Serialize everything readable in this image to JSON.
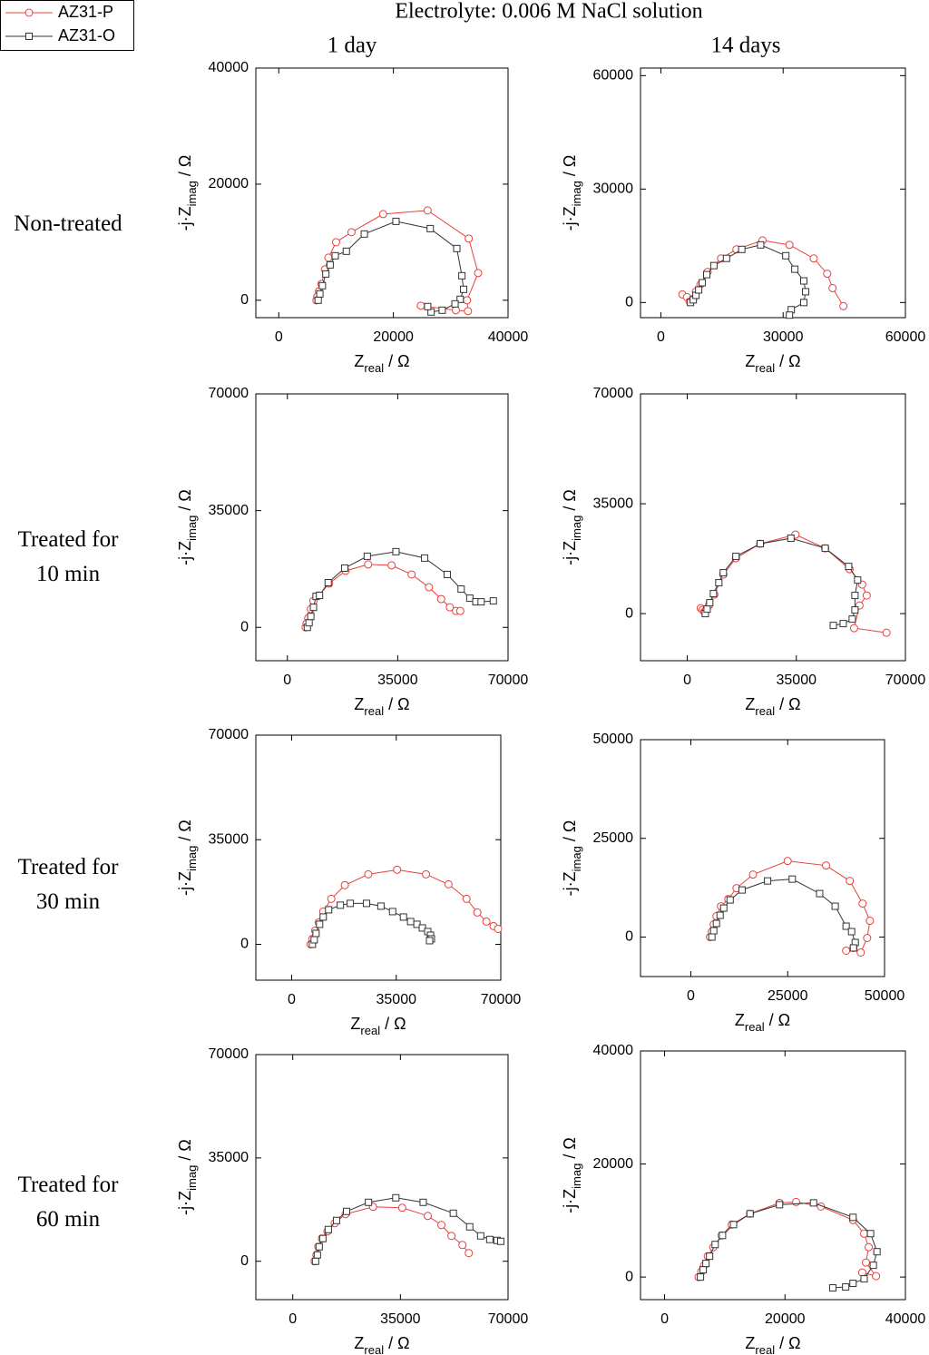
{
  "title": "Electrolyte: 0.006 M NaCl solution",
  "column_titles": [
    "1 day",
    "14 days"
  ],
  "row_labels": [
    "Non-treated",
    "Treated for 10 min",
    "Treated for 30 min",
    "Treated for 60 min"
  ],
  "chart_data": [
    {
      "type": "line",
      "xlabel": [
        "Z",
        "real",
        "/ Ω"
      ],
      "ylabel": [
        "-j·Z",
        "imag",
        "/ Ω"
      ],
      "xlim": [
        -4000,
        40000
      ],
      "xticks": [
        0,
        20000,
        40000
      ],
      "ylim": [
        -3000,
        40000
      ],
      "yticks": [
        0,
        20000,
        40000
      ],
      "series": [
        {
          "name": "AZ31-P",
          "color": "#e8403a",
          "marker": "circle",
          "x": [
            6570,
            6720,
            7020,
            7460,
            8060,
            8660,
            10000,
            12690,
            18210,
            25970,
            33140,
            34780,
            32840,
            33000,
            30900,
            24780
          ],
          "values": [
            0,
            625,
            1560,
            2810,
            5310,
            7340,
            10000,
            11720,
            14840,
            15470,
            10630,
            4690,
            0,
            -1880,
            -1720,
            -940
          ]
        },
        {
          "name": "AZ31-O",
          "color": "#333333",
          "marker": "square",
          "x": [
            6870,
            7170,
            7610,
            8210,
            8960,
            9850,
            11790,
            14930,
            20450,
            26430,
            31060,
            31950,
            32250,
            31650,
            30750,
            28510,
            26570,
            25980
          ],
          "values": [
            0,
            1090,
            2500,
            4530,
            6090,
            7660,
            8440,
            11410,
            13590,
            12340,
            8910,
            4220,
            1880,
            160,
            -630,
            -1720,
            -2030,
            -1090
          ]
        }
      ]
    },
    {
      "type": "line",
      "xlabel": [
        "Z",
        "real",
        "/ Ω"
      ],
      "ylabel": [
        "-j·Z",
        "imag",
        "/ Ω"
      ],
      "xlim": [
        -5000,
        60000
      ],
      "xticks": [
        0,
        30000,
        60000
      ],
      "ylim": [
        -4000,
        62000
      ],
      "yticks": [
        0,
        30000,
        60000
      ],
      "series": [
        {
          "name": "AZ31-P",
          "color": "#e8403a",
          "marker": "circle",
          "x": [
            5290,
            6400,
            7060,
            7940,
            8600,
            9710,
            11470,
            14780,
            18530,
            24930,
            31550,
            37500,
            40810,
            42130,
            44780
          ],
          "values": [
            2140,
            1430,
            240,
            950,
            2860,
            4760,
            8100,
            11670,
            14050,
            16430,
            15240,
            11670,
            7620,
            3810,
            -950
          ]
        },
        {
          "name": "AZ31-O",
          "color": "#333333",
          "marker": "square",
          "x": [
            7280,
            7940,
            8600,
            9270,
            10150,
            11250,
            13010,
            16100,
            19850,
            24480,
            30660,
            32870,
            35070,
            35520,
            35070,
            31990,
            31550
          ],
          "values": [
            0,
            710,
            1900,
            3330,
            5240,
            7380,
            9760,
            11670,
            14050,
            15240,
            12380,
            8810,
            5710,
            2860,
            0,
            -1900,
            -3330
          ]
        }
      ]
    },
    {
      "type": "line",
      "xlabel": [
        "Z",
        "real",
        "/ Ω"
      ],
      "ylabel": [
        "-j·Z",
        "imag",
        "/ Ω"
      ],
      "xlim": [
        -10000,
        70000
      ],
      "xticks": [
        0,
        35000,
        70000
      ],
      "ylim": [
        -10000,
        70000
      ],
      "yticks": [
        0,
        35000,
        70000
      ],
      "series": [
        {
          "name": "AZ31-P",
          "color": "#e8403a",
          "marker": "circle",
          "x": [
            5790,
            6060,
            6610,
            7440,
            8270,
            9920,
            13230,
            18460,
            25630,
            33070,
            39410,
            44920,
            48780,
            51540,
            53470,
            54840
          ],
          "values": [
            0,
            1090,
            2730,
            5470,
            7930,
            9570,
            13120,
            16950,
            18870,
            18590,
            15860,
            12030,
            8480,
            6010,
            4920,
            4920
          ]
        },
        {
          "name": "AZ31-O",
          "color": "#333333",
          "marker": "square",
          "x": [
            6340,
            6890,
            7440,
            8270,
            9100,
            10200,
            12950,
            18190,
            25350,
            34450,
            43540,
            50710,
            55120,
            57870,
            59800,
            61460,
            65320
          ],
          "values": [
            0,
            1370,
            3280,
            6010,
            9290,
            9570,
            13400,
            17770,
            21320,
            22690,
            20780,
            15860,
            11480,
            8750,
            7660,
            7660,
            7930
          ]
        }
      ]
    },
    {
      "type": "line",
      "xlabel": [
        "Z",
        "real",
        "/ Ω"
      ],
      "ylabel": [
        "-j·Z",
        "imag",
        "/ Ω"
      ],
      "xlim": [
        -15000,
        70000
      ],
      "xticks": [
        0,
        35000,
        70000
      ],
      "ylim": [
        -15000,
        70000
      ],
      "yticks": [
        0,
        35000,
        70000
      ],
      "series": [
        {
          "name": "AZ31-P",
          "color": "#e8403a",
          "marker": "circle",
          "x": [
            4340,
            4920,
            5500,
            6080,
            6940,
            8680,
            11570,
            15620,
            23430,
            34720,
            44260,
            52080,
            56130,
            57580,
            55260,
            53520,
            63930
          ],
          "values": [
            1740,
            1160,
            580,
            1160,
            2600,
            6080,
            12440,
            17650,
            22270,
            25170,
            20830,
            14180,
            9260,
            5790,
            2600,
            -4630,
            -6080
          ]
        },
        {
          "name": "AZ31-O",
          "color": "#333333",
          "marker": "square",
          "x": [
            5790,
            6370,
            7230,
            8390,
            10130,
            11570,
            15620,
            23430,
            33260,
            44260,
            51780,
            54670,
            53810,
            53810,
            52940,
            50050,
            46870
          ],
          "values": [
            0,
            1450,
            3470,
            6370,
            9840,
            13020,
            18230,
            22270,
            24010,
            20830,
            15040,
            10700,
            5790,
            1160,
            -1740,
            -3180,
            -3760
          ]
        }
      ]
    },
    {
      "type": "line",
      "xlabel": [
        "Z",
        "real",
        "/ Ω"
      ],
      "ylabel": [
        "-j·Z",
        "imag",
        "/ Ω"
      ],
      "xlim": [
        -12000,
        70000
      ],
      "xticks": [
        0,
        35000,
        70000
      ],
      "ylim": [
        -12000,
        70000
      ],
      "yticks": [
        0,
        35000,
        70000
      ],
      "series": [
        {
          "name": "AZ31-P",
          "color": "#e8403a",
          "marker": "circle",
          "x": [
            6340,
            6940,
            7840,
            9050,
            10560,
            13270,
            17800,
            25640,
            35300,
            44950,
            52490,
            58530,
            62150,
            65170,
            67580,
            69090
          ],
          "values": [
            0,
            1830,
            4560,
            7300,
            10950,
            15220,
            19780,
            23430,
            24950,
            23430,
            20080,
            15220,
            10650,
            7610,
            6090,
            5170
          ]
        },
        {
          "name": "AZ31-O",
          "color": "#333333",
          "marker": "square",
          "x": [
            6940,
            7540,
            8150,
            9350,
            10560,
            12370,
            16290,
            19610,
            25040,
            29870,
            33790,
            37410,
            39820,
            41940,
            43750,
            45560,
            46460,
            46760,
            46160
          ],
          "values": [
            0,
            1520,
            3650,
            6690,
            9130,
            11560,
            13090,
            13690,
            13690,
            12780,
            10950,
            9130,
            7610,
            6690,
            5480,
            4260,
            3040,
            1830,
            1220
          ]
        }
      ]
    },
    {
      "type": "line",
      "xlabel": [
        "Z",
        "real",
        "/ Ω"
      ],
      "ylabel": [
        "-j·Z",
        "imag",
        "/ Ω"
      ],
      "xlim": [
        -13000,
        50000
      ],
      "xticks": [
        0,
        25000,
        50000
      ],
      "ylim": [
        -10000,
        50000
      ],
      "yticks": [
        0,
        25000,
        50000
      ],
      "series": [
        {
          "name": "AZ31-P",
          "color": "#e8403a",
          "marker": "circle",
          "x": [
            4950,
            5420,
            5900,
            6600,
            7780,
            9670,
            11790,
            16030,
            24990,
            34900,
            41030,
            44330,
            46220,
            45510,
            43860,
            41970,
            40080
          ],
          "values": [
            0,
            1380,
            3210,
            5280,
            7800,
            9630,
            12390,
            15830,
            19270,
            18120,
            14220,
            8490,
            4130,
            -230,
            -3900,
            -2750,
            -3440
          ]
        },
        {
          "name": "AZ31-O",
          "color": "#333333",
          "marker": "square",
          "x": [
            5420,
            5900,
            6600,
            7550,
            8490,
            10140,
            13210,
            19810,
            26180,
            33250,
            37260,
            40080,
            41500,
            42440,
            41970
          ],
          "values": [
            0,
            1610,
            3440,
            5510,
            7340,
            9410,
            11930,
            14220,
            14680,
            11010,
            7800,
            2750,
            1380,
            -1380,
            -2750
          ]
        }
      ]
    },
    {
      "type": "line",
      "xlabel": [
        "Z",
        "real",
        "/ Ω"
      ],
      "ylabel": [
        "-j·Z",
        "imag",
        "/ Ω"
      ],
      "xlim": [
        -12000,
        70000
      ],
      "xticks": [
        0,
        35000,
        70000
      ],
      "ylim": [
        -13000,
        70000
      ],
      "yticks": [
        0,
        35000,
        70000
      ],
      "series": [
        {
          "name": "AZ31-P",
          "color": "#e8403a",
          "marker": "circle",
          "x": [
            7120,
            7710,
            8310,
            9490,
            11270,
            13640,
            17200,
            26100,
            35590,
            43900,
            48340,
            51600,
            55160,
            57240
          ],
          "values": [
            0,
            2150,
            4910,
            7680,
            10130,
            12890,
            15970,
            18420,
            18110,
            15350,
            12280,
            8600,
            5530,
            2760
          ]
        },
        {
          "name": "AZ31-O",
          "color": "#333333",
          "marker": "square",
          "x": [
            7420,
            8010,
            8600,
            9790,
            11570,
            14240,
            17500,
            24620,
            33520,
            42410,
            52200,
            57540,
            61100,
            64060,
            66430,
            67620
          ],
          "values": [
            0,
            2150,
            4910,
            7680,
            10750,
            13820,
            16890,
            19960,
            21490,
            19960,
            16270,
            11670,
            8600,
            7370,
            7060,
            6750
          ]
        }
      ]
    },
    {
      "type": "line",
      "xlabel": [
        "Z",
        "real",
        "/ Ω"
      ],
      "ylabel": [
        "-j·Z",
        "imag",
        "/ Ω"
      ],
      "xlim": [
        -4000,
        40000
      ],
      "xticks": [
        0,
        20000,
        40000
      ],
      "ylim": [
        -4000,
        40000
      ],
      "yticks": [
        0,
        20000,
        40000
      ],
      "series": [
        {
          "name": "AZ31-P",
          "color": "#e8403a",
          "marker": "circle",
          "x": [
            5650,
            6110,
            6570,
            7180,
            8090,
            9470,
            11150,
            14200,
            19090,
            21840,
            25960,
            31300,
            33140,
            33900,
            33440,
            35120,
            32830
          ],
          "values": [
            0,
            960,
            2080,
            3680,
            5280,
            7360,
            9280,
            11200,
            13120,
            13280,
            12480,
            10080,
            7680,
            5280,
            2560,
            160,
            800
          ]
        },
        {
          "name": "AZ31-O",
          "color": "#333333",
          "marker": "square",
          "x": [
            5960,
            6410,
            6870,
            7480,
            8400,
            9620,
            11450,
            14200,
            19090,
            24740,
            31300,
            34210,
            35280,
            34670,
            33140,
            31300,
            30080,
            27940
          ],
          "values": [
            0,
            1280,
            2400,
            3680,
            5760,
            7360,
            9280,
            11200,
            12800,
            13120,
            10560,
            7680,
            4480,
            2080,
            -320,
            -1120,
            -1760,
            -1920
          ]
        }
      ]
    }
  ]
}
